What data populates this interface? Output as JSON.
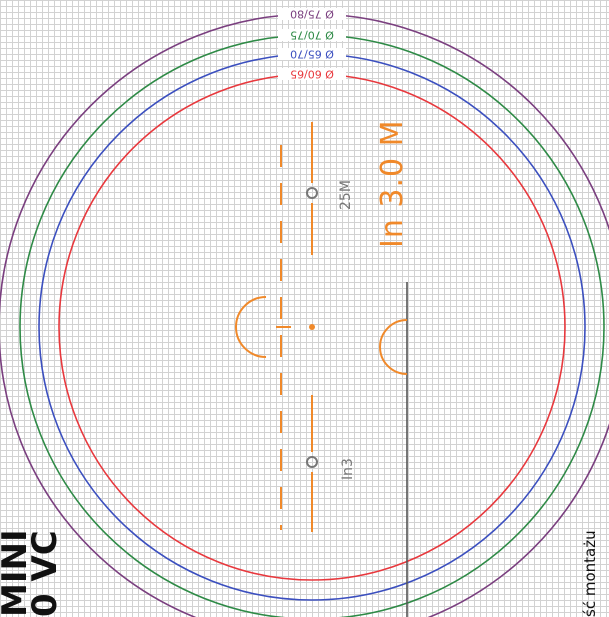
{
  "rings": [
    {
      "label": "Ø 60/65",
      "color": "#e8383d"
    },
    {
      "label": "Ø 65/70",
      "color": "#3b4fbf"
    },
    {
      "label": "Ø 70/75",
      "color": "#2e8a46"
    },
    {
      "label": "Ø 75/80",
      "color": "#7a3f7f"
    }
  ],
  "accent_color": "#f0892a",
  "main_label": "In 3.0 M",
  "hole_labels": {
    "top": "25M",
    "bottom": "In3"
  },
  "side_title": {
    "line1": "MINI",
    "line2": "0 VC"
  },
  "side_note": "ść montażu"
}
